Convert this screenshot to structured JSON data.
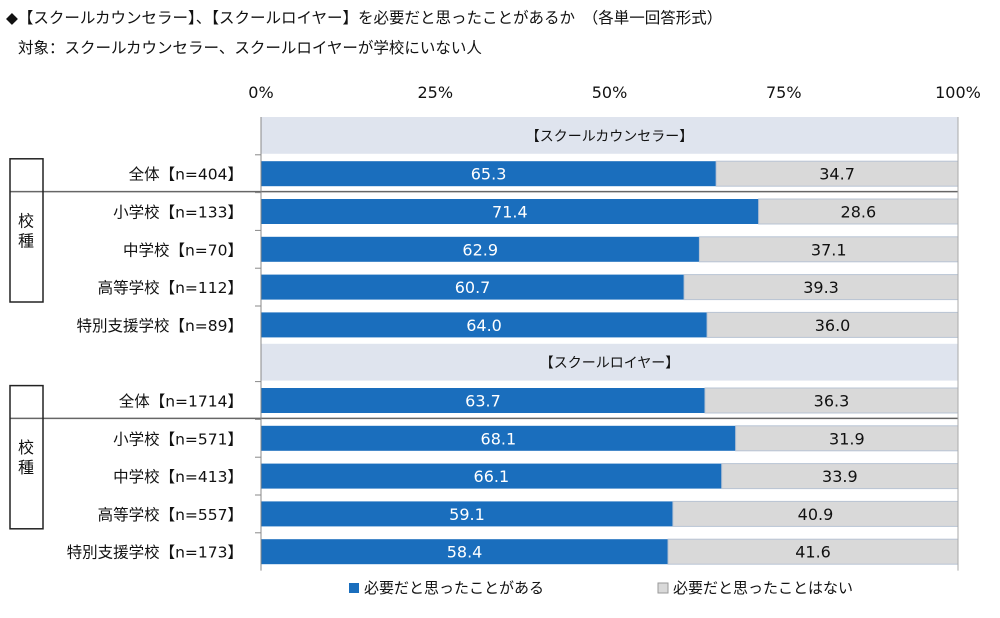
{
  "chart_data": {
    "type": "bar",
    "stacked": true,
    "orientation": "horizontal",
    "title": "◆【スクールカウンセラー】、【スクールロイヤー】を必要だと思ったことがあるか　（各単一回答形式）",
    "subtitle": "対象：スクールカウンセラー、スクールロイヤーが学校にいない人",
    "xlim": [
      0,
      100
    ],
    "xticks": [
      "0%",
      "25%",
      "50%",
      "75%",
      "100%"
    ],
    "group_label": "校種",
    "sections": [
      {
        "header": "【スクールカウンセラー】",
        "rows": [
          {
            "label": "全体【n=404】",
            "values": [
              65.3,
              34.7
            ]
          },
          {
            "label": "小学校【n=133】",
            "values": [
              71.4,
              28.6
            ]
          },
          {
            "label": "中学校【n=70】",
            "values": [
              62.9,
              37.1
            ]
          },
          {
            "label": "高等学校【n=112】",
            "values": [
              60.7,
              39.3
            ]
          },
          {
            "label": "特別支援学校【n=89】",
            "values": [
              64.0,
              36.0
            ]
          }
        ]
      },
      {
        "header": "【スクールロイヤー】",
        "rows": [
          {
            "label": "全体【n=1714】",
            "values": [
              63.7,
              36.3
            ]
          },
          {
            "label": "小学校【n=571】",
            "values": [
              68.1,
              31.9
            ]
          },
          {
            "label": "中学校【n=413】",
            "values": [
              66.1,
              33.9
            ]
          },
          {
            "label": "高等学校【n=557】",
            "values": [
              59.1,
              40.9
            ]
          },
          {
            "label": "特別支援学校【n=173】",
            "values": [
              58.4,
              41.6
            ]
          }
        ]
      }
    ],
    "series": [
      {
        "name": "必要だと思ったことがある",
        "color": "#1a6ebd"
      },
      {
        "name": "必要だと思ったことはない",
        "color": "#d9d9d9"
      }
    ],
    "legend": "bottom",
    "header_band_color": "#dfe4ee"
  }
}
